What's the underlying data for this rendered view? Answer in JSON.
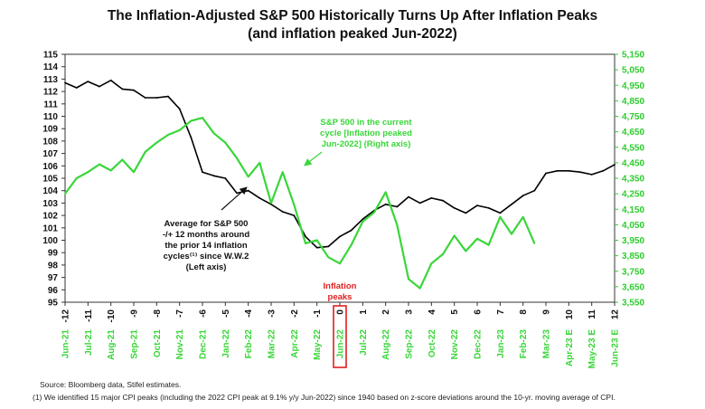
{
  "chart_data": {
    "type": "line",
    "title_line1": "The Inflation-Adjusted S&P 500 Historically Turns Up After Inflation Peaks",
    "title_line2": "(and inflation peaked Jun-2022)",
    "x_months": [
      -12,
      -11,
      -10,
      -9,
      -8,
      -7,
      -6,
      -5,
      -4,
      -3,
      -2,
      -1,
      0,
      1,
      2,
      3,
      4,
      5,
      6,
      7,
      8,
      9,
      10,
      11,
      12
    ],
    "x_tick_labels": [
      "-12",
      "-11",
      "-10",
      "-9",
      "-8",
      "-7",
      "-6",
      "-5",
      "-4",
      "-3",
      "-2",
      "-1",
      "0",
      "1",
      "2",
      "3",
      "4",
      "5",
      "6",
      "7",
      "8",
      "9",
      "10",
      "11",
      "12"
    ],
    "x_date_labels": [
      "Jun-21",
      "Jul-21",
      "Aug-21",
      "Sep-21",
      "Oct-21",
      "Nov-21",
      "Dec-21",
      "Jan-22",
      "Feb-22",
      "Mar-22",
      "Apr-22",
      "May-22",
      "Jun-22",
      "Jul-22",
      "Aug-22",
      "Sep-22",
      "Oct-22",
      "Nov-22",
      "Dec-22",
      "Jan-23",
      "Feb-23",
      "Mar-23",
      "Apr-23 E",
      "May-23 E",
      "Jun-23 E"
    ],
    "ylim_left": [
      95,
      115
    ],
    "yticks_left": [
      95,
      96,
      97,
      98,
      99,
      100,
      101,
      102,
      103,
      104,
      105,
      106,
      107,
      108,
      109,
      110,
      111,
      112,
      113,
      114,
      115
    ],
    "ylim_right": [
      3550,
      5150
    ],
    "yticks_right": [
      "3,550",
      "3,650",
      "3,750",
      "3,850",
      "3,950",
      "4,050",
      "4,150",
      "4,250",
      "4,350",
      "4,450",
      "4,550",
      "4,650",
      "4,750",
      "4,850",
      "4,950",
      "5,050",
      "5,150"
    ],
    "series": [
      {
        "name": "Average for S&P 500 -/+ 12 months around the prior 14 inflation cycles since W.W.2",
        "axis": "left",
        "color": "#000000",
        "x": [
          -12,
          -11.5,
          -11,
          -10.5,
          -10,
          -9.5,
          -9,
          -8.5,
          -8,
          -7.5,
          -7,
          -6.5,
          -6,
          -5.5,
          -5,
          -4.5,
          -4,
          -3.5,
          -3,
          -2.5,
          -2,
          -1.5,
          -1,
          -0.5,
          0,
          0.5,
          1,
          1.5,
          2,
          2.5,
          3,
          3.5,
          4,
          4.5,
          5,
          5.5,
          6,
          6.5,
          7,
          7.5,
          8,
          8.5,
          9,
          9.5,
          10,
          10.5,
          11,
          11.5,
          12
        ],
        "values": [
          112.7,
          112.3,
          112.8,
          112.4,
          112.9,
          112.2,
          112.1,
          111.5,
          111.5,
          111.6,
          110.6,
          108.3,
          105.5,
          105.2,
          105.0,
          103.8,
          104.0,
          103.4,
          102.9,
          102.3,
          102.0,
          100.3,
          99.4,
          99.5,
          100.3,
          100.8,
          101.7,
          102.4,
          102.9,
          102.7,
          103.5,
          103.0,
          103.4,
          103.2,
          102.6,
          102.2,
          102.8,
          102.6,
          102.2,
          102.9,
          103.6,
          104.0,
          105.4,
          105.6,
          105.6,
          105.5,
          105.3,
          105.6,
          106.1
        ]
      },
      {
        "name": "S&P 500 in the current cycle [Inflation peaked Jun-2022] (Right axis)",
        "axis": "right",
        "color": "#39d639",
        "x": [
          -12,
          -11.5,
          -11,
          -10.5,
          -10,
          -9.5,
          -9,
          -8.5,
          -8,
          -7.5,
          -7,
          -6.5,
          -6,
          -5.5,
          -5,
          -4.5,
          -4,
          -3.5,
          -3,
          -2.5,
          -2,
          -1.5,
          -1,
          -0.5,
          0,
          0.5,
          1,
          1.5,
          2,
          2.5,
          3,
          3.5,
          4,
          4.5,
          5,
          5.5,
          6,
          6.5,
          7,
          7.5,
          8,
          8.5
        ],
        "values": [
          4250,
          4350,
          4390,
          4440,
          4400,
          4470,
          4390,
          4520,
          4580,
          4630,
          4660,
          4720,
          4740,
          4640,
          4580,
          4480,
          4360,
          4450,
          4190,
          4390,
          4180,
          3930,
          3950,
          3840,
          3800,
          3920,
          4070,
          4130,
          4260,
          4050,
          3700,
          3640,
          3800,
          3860,
          3980,
          3880,
          3960,
          3920,
          4100,
          3990,
          4100,
          3930
        ]
      }
    ],
    "annotations": {
      "black_lines": [
        "Average for S&P 500",
        "-/+ 12 months around",
        "the prior 14 inflation",
        "cycles⁽¹⁾ since W.W.2",
        "(Left axis)"
      ],
      "green_lines": [
        "S&P 500 in the current",
        "cycle [Inflation peaked",
        "Jun-2022] (Right axis)"
      ],
      "red_lines": [
        "Inflation",
        "peaks"
      ]
    },
    "source": "Source: Bloomberg data, Stifel estimates.",
    "footnote": "(1)   We identified 15 major CPI peaks (including the 2022 CPI peak at 9.1% y/y Jun-2022) since 1940 based on z-score deviations around the 10-yr. moving average of CPI."
  }
}
